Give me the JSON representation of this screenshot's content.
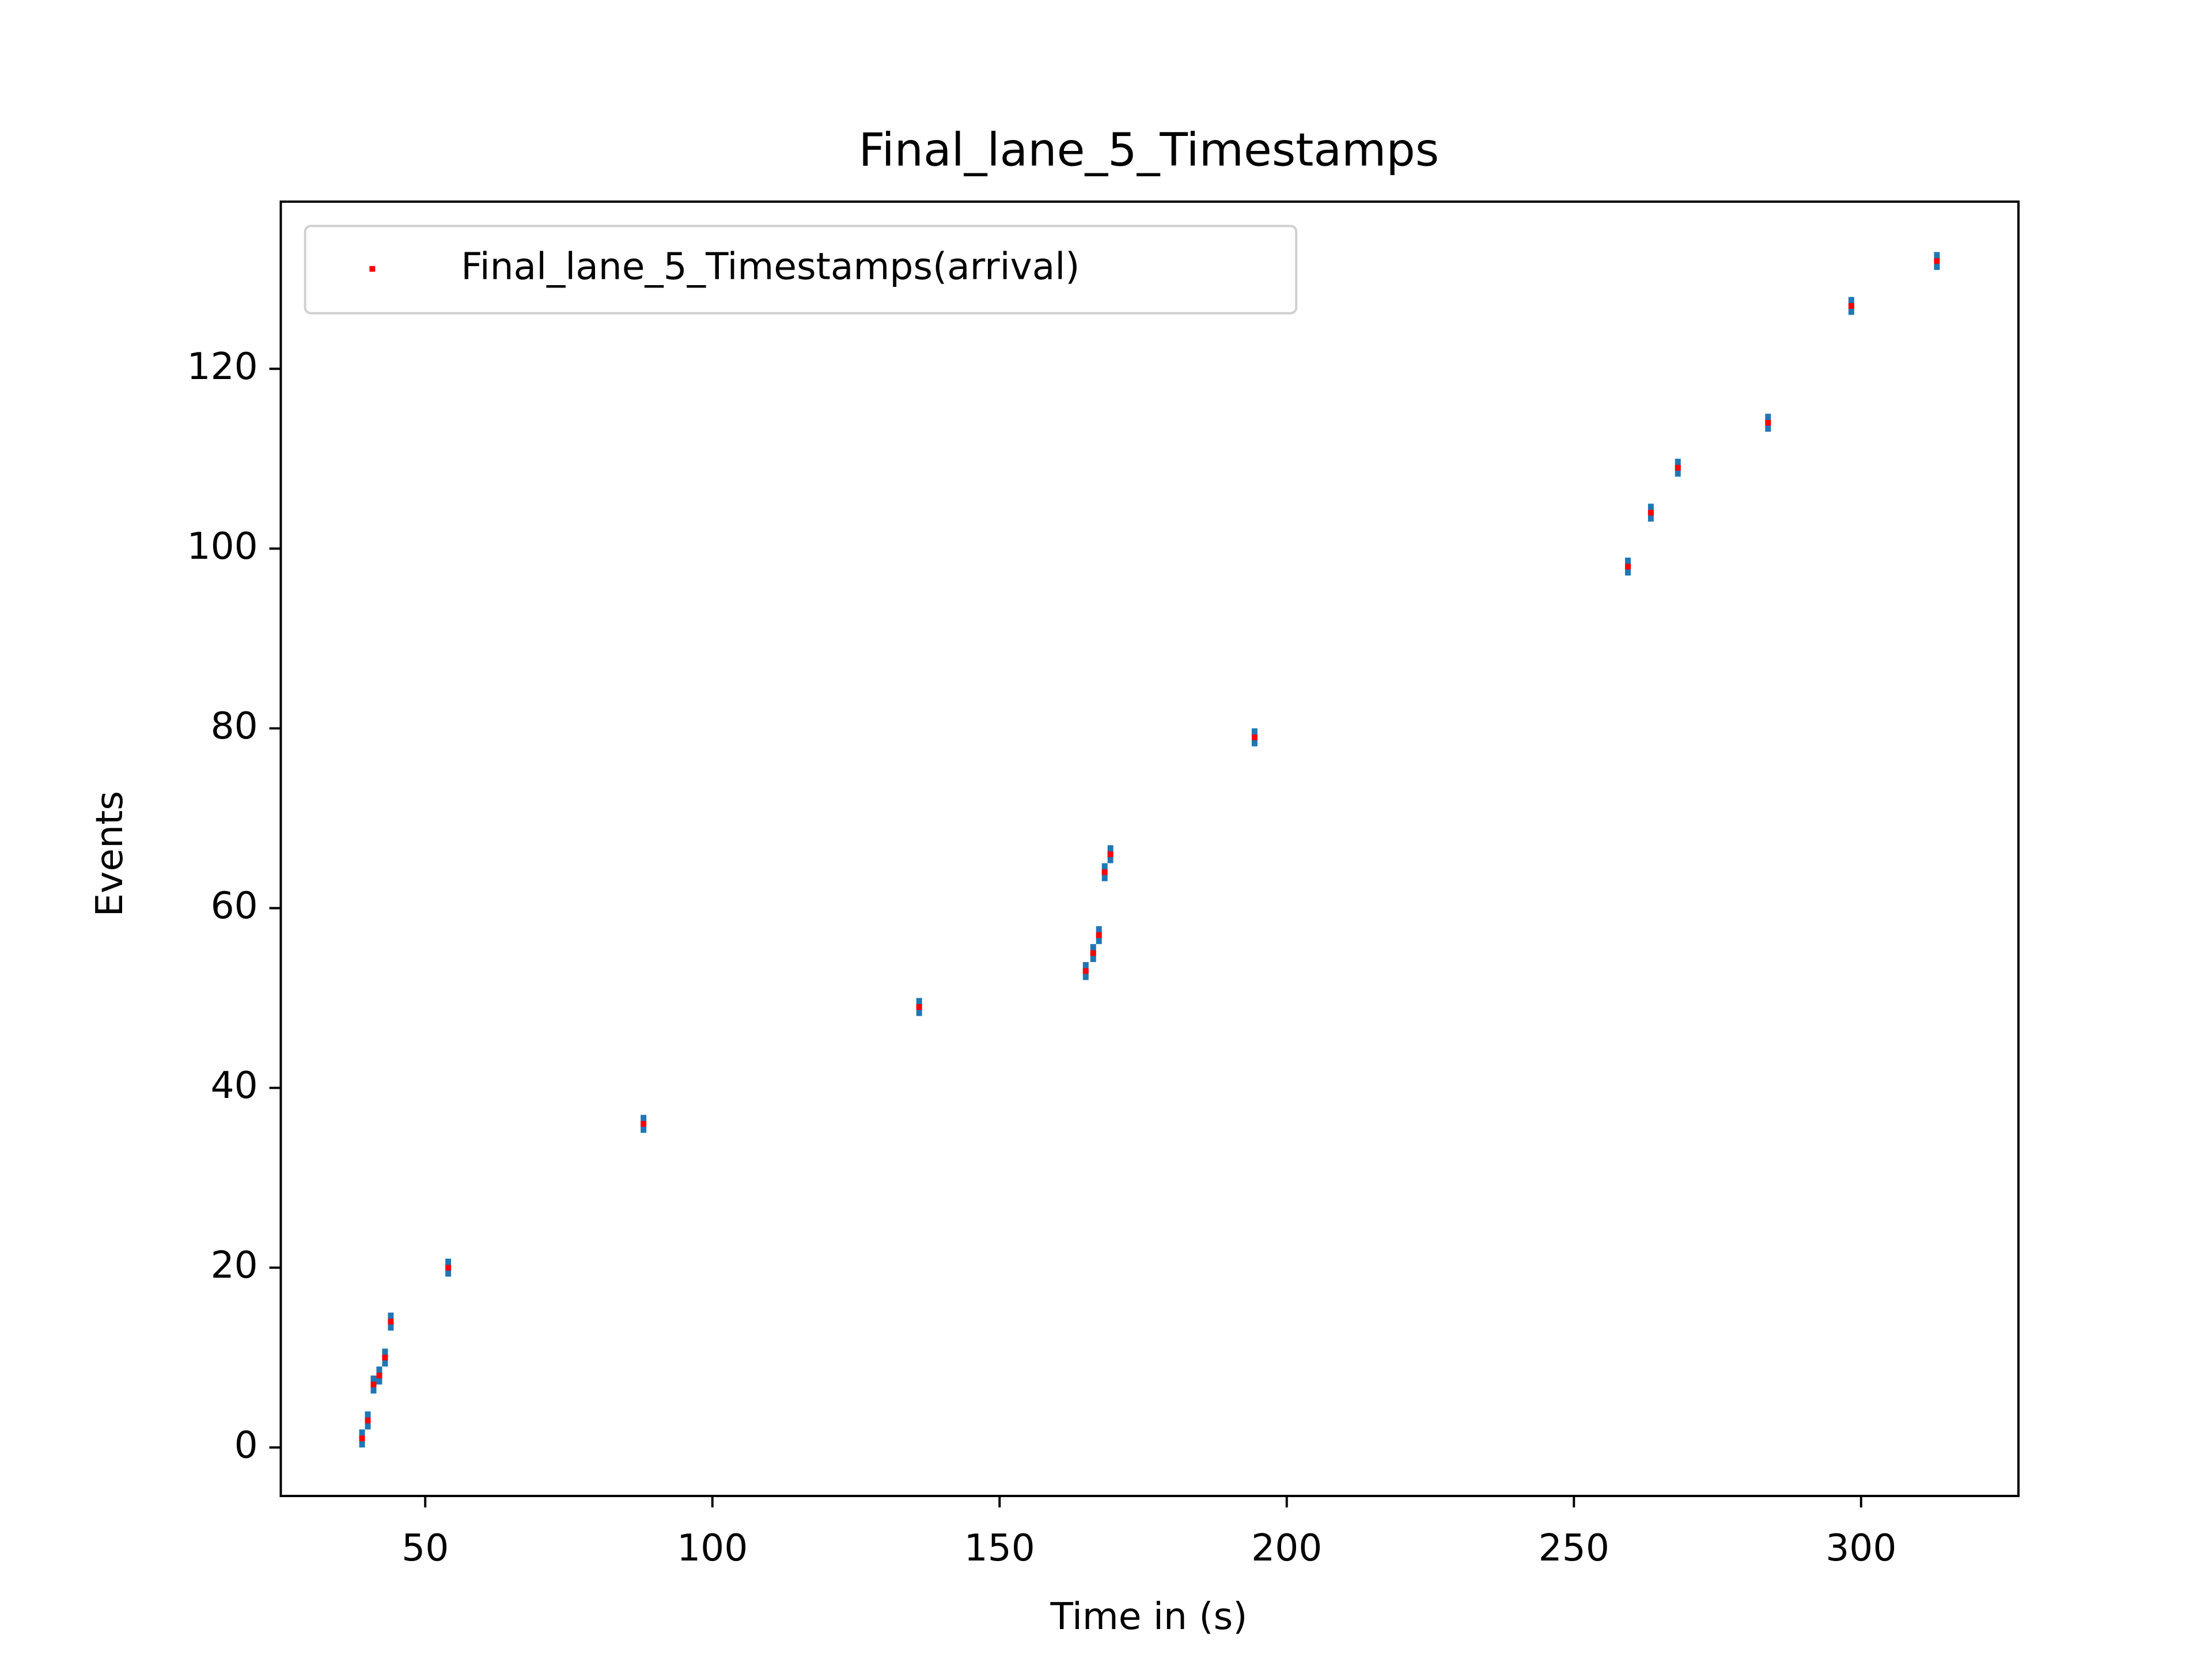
{
  "chart_data": {
    "type": "scatter",
    "title": "Final_lane_5_Timestamps",
    "x_label": "Time in (s)",
    "y_label": "Events",
    "series": [
      {
        "name": "Final_lane_5_Timestamps(arrival)",
        "color": "#ff0000",
        "error_color": "#1f77b4",
        "yerr": 1,
        "x": [
          39,
          40,
          41,
          42,
          43,
          44,
          54,
          88,
          136,
          165,
          166.3,
          167.3,
          168.3,
          169.3,
          194.4,
          259.4,
          263.4,
          268.1,
          283.8,
          298.3,
          313.2
        ],
        "values": [
          1,
          3,
          7,
          8,
          10,
          14,
          20,
          36,
          49,
          53,
          55,
          57,
          64,
          66,
          79,
          98,
          104,
          109,
          114,
          127,
          132
        ]
      }
    ],
    "xlim": [
      24.85,
      327.4
    ],
    "ylim": [
      -5.4,
      138.6
    ],
    "xticks": [
      50,
      100,
      150,
      200,
      250,
      300
    ],
    "yticks": [
      0,
      20,
      40,
      60,
      80,
      100,
      120
    ],
    "legend": "upper left",
    "grid": false
  }
}
